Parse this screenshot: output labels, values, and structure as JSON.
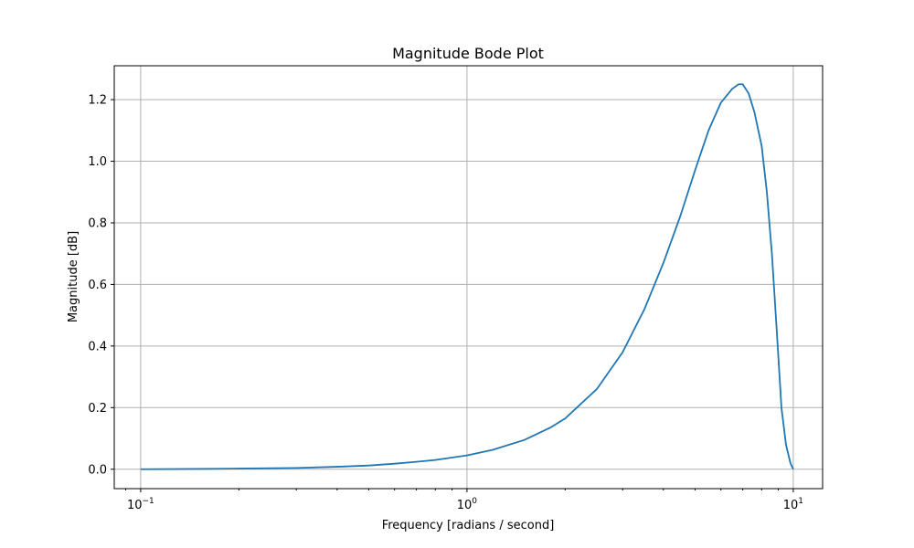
{
  "chart_data": {
    "type": "line",
    "title": "Magnitude Bode Plot",
    "xlabel": "Frequency [radians / second]",
    "ylabel": "Magnitude [dB]",
    "xscale": "log",
    "xlim": [
      0.083,
      12.3
    ],
    "ylim": [
      -0.063,
      1.31
    ],
    "grid": true,
    "x_ticks": [
      {
        "value": 0.1,
        "base": "10",
        "exp": "−1"
      },
      {
        "value": 1,
        "base": "10",
        "exp": "0"
      },
      {
        "value": 10,
        "base": "10",
        "exp": "1"
      }
    ],
    "y_ticks": [
      {
        "value": 0.0,
        "label": "0.0"
      },
      {
        "value": 0.2,
        "label": "0.2"
      },
      {
        "value": 0.4,
        "label": "0.4"
      },
      {
        "value": 0.6,
        "label": "0.6"
      },
      {
        "value": 0.8,
        "label": "0.8"
      },
      {
        "value": 1.0,
        "label": "1.0"
      },
      {
        "value": 1.2,
        "label": "1.2"
      }
    ],
    "series": [
      {
        "color": "#1f77b4",
        "x": [
          0.1,
          0.15,
          0.2,
          0.3,
          0.4,
          0.5,
          0.6,
          0.7,
          0.8,
          1.0,
          1.2,
          1.5,
          1.8,
          2.0,
          2.5,
          3.0,
          3.5,
          4.0,
          4.5,
          5.0,
          5.5,
          6.0,
          6.5,
          6.8,
          7.0,
          7.3,
          7.6,
          8.0,
          8.3,
          8.6,
          8.9,
          9.2,
          9.5,
          9.8,
          10.0
        ],
        "y": [
          0.0,
          0.001,
          0.002,
          0.004,
          0.008,
          0.012,
          0.018,
          0.024,
          0.03,
          0.045,
          0.063,
          0.095,
          0.135,
          0.165,
          0.26,
          0.38,
          0.52,
          0.67,
          0.82,
          0.97,
          1.1,
          1.19,
          1.235,
          1.25,
          1.25,
          1.22,
          1.16,
          1.05,
          0.9,
          0.7,
          0.45,
          0.2,
          0.08,
          0.02,
          0.0
        ]
      }
    ]
  }
}
